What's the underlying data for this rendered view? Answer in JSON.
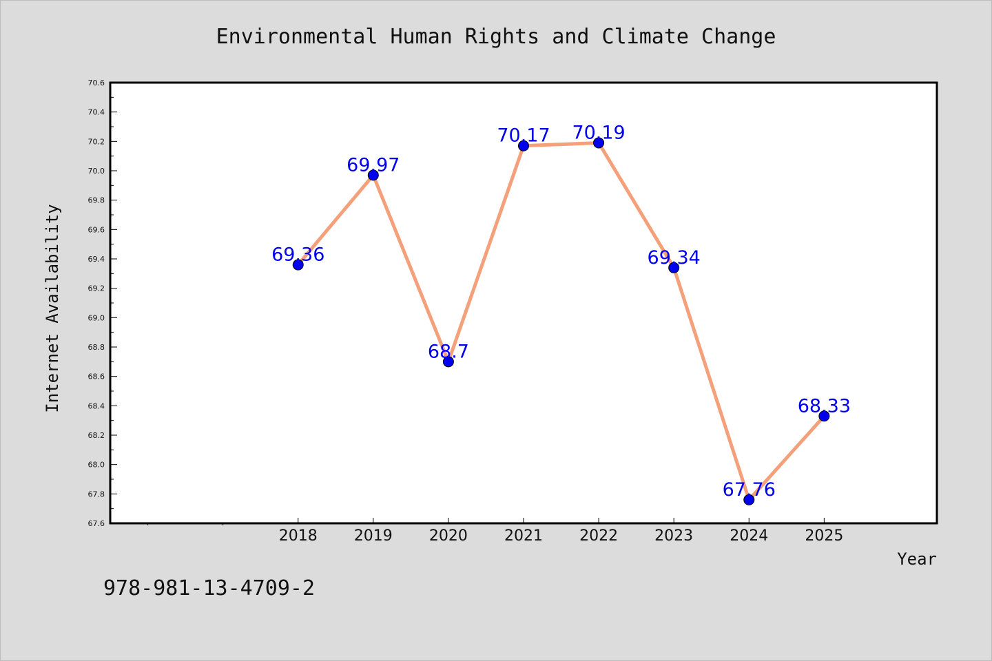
{
  "chart_data": {
    "type": "line",
    "title": "Environmental Human Rights and Climate Change",
    "xlabel": "Year",
    "ylabel": "Internet Availability",
    "x": [
      2018,
      2019,
      2020,
      2021,
      2022,
      2023,
      2024,
      2025
    ],
    "x_tick_labels": [
      "2018",
      "2019",
      "2020",
      "2021",
      "2022",
      "2023",
      "2024",
      "2025"
    ],
    "xlim": [
      2015.5,
      2026.5
    ],
    "series": [
      {
        "values": [
          69.36,
          69.97,
          68.7,
          70.17,
          70.19,
          69.34,
          67.76,
          68.33
        ],
        "data_labels": [
          "69.36",
          "69.97",
          "68.7",
          "70.17",
          "70.19",
          "69.34",
          "67.76",
          "68.33"
        ]
      }
    ],
    "ylim": [
      67.6,
      70.6
    ],
    "y_ticks": [
      67.6,
      67.8,
      68.0,
      68.2,
      68.4,
      68.6,
      68.8,
      69.0,
      69.2,
      69.4,
      69.6,
      69.8,
      70.0,
      70.2,
      70.4,
      70.6
    ],
    "y_tick_labels": [
      "67.6",
      "67.8",
      "68.0",
      "68.2",
      "68.4",
      "68.6",
      "68.8",
      "69.0",
      "69.2",
      "69.4",
      "69.6",
      "69.8",
      "70.0",
      "70.2",
      "70.4",
      "70.6"
    ],
    "grid": false,
    "colors": {
      "line": "#f4a07a",
      "marker": "#0000ee",
      "label": "#0000ee",
      "plot_bg": "#ffffff",
      "page_bg": "#dcdcdc"
    }
  },
  "footer": {
    "isbn": "978-981-13-4709-2"
  }
}
